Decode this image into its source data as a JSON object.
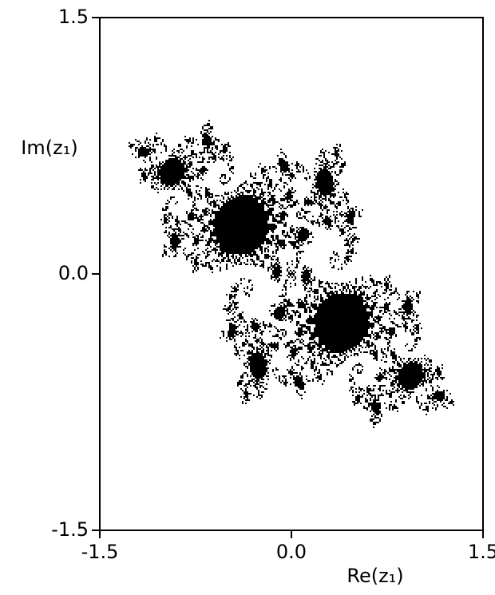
{
  "chart_data": {
    "type": "julia",
    "xlabel": "Re(z₁)",
    "ylabel": "Im(z₁)",
    "xlim": [
      -1.5,
      1.5
    ],
    "ylim": [
      -1.5,
      1.5
    ],
    "xticks": [
      -1.5,
      {
        "value": 0,
        "label": "0.0"
      },
      1.5
    ],
    "yticks": [
      -1.5,
      {
        "value": 0,
        "label": "0.0"
      },
      1.5
    ],
    "color": "#000000"
  }
}
